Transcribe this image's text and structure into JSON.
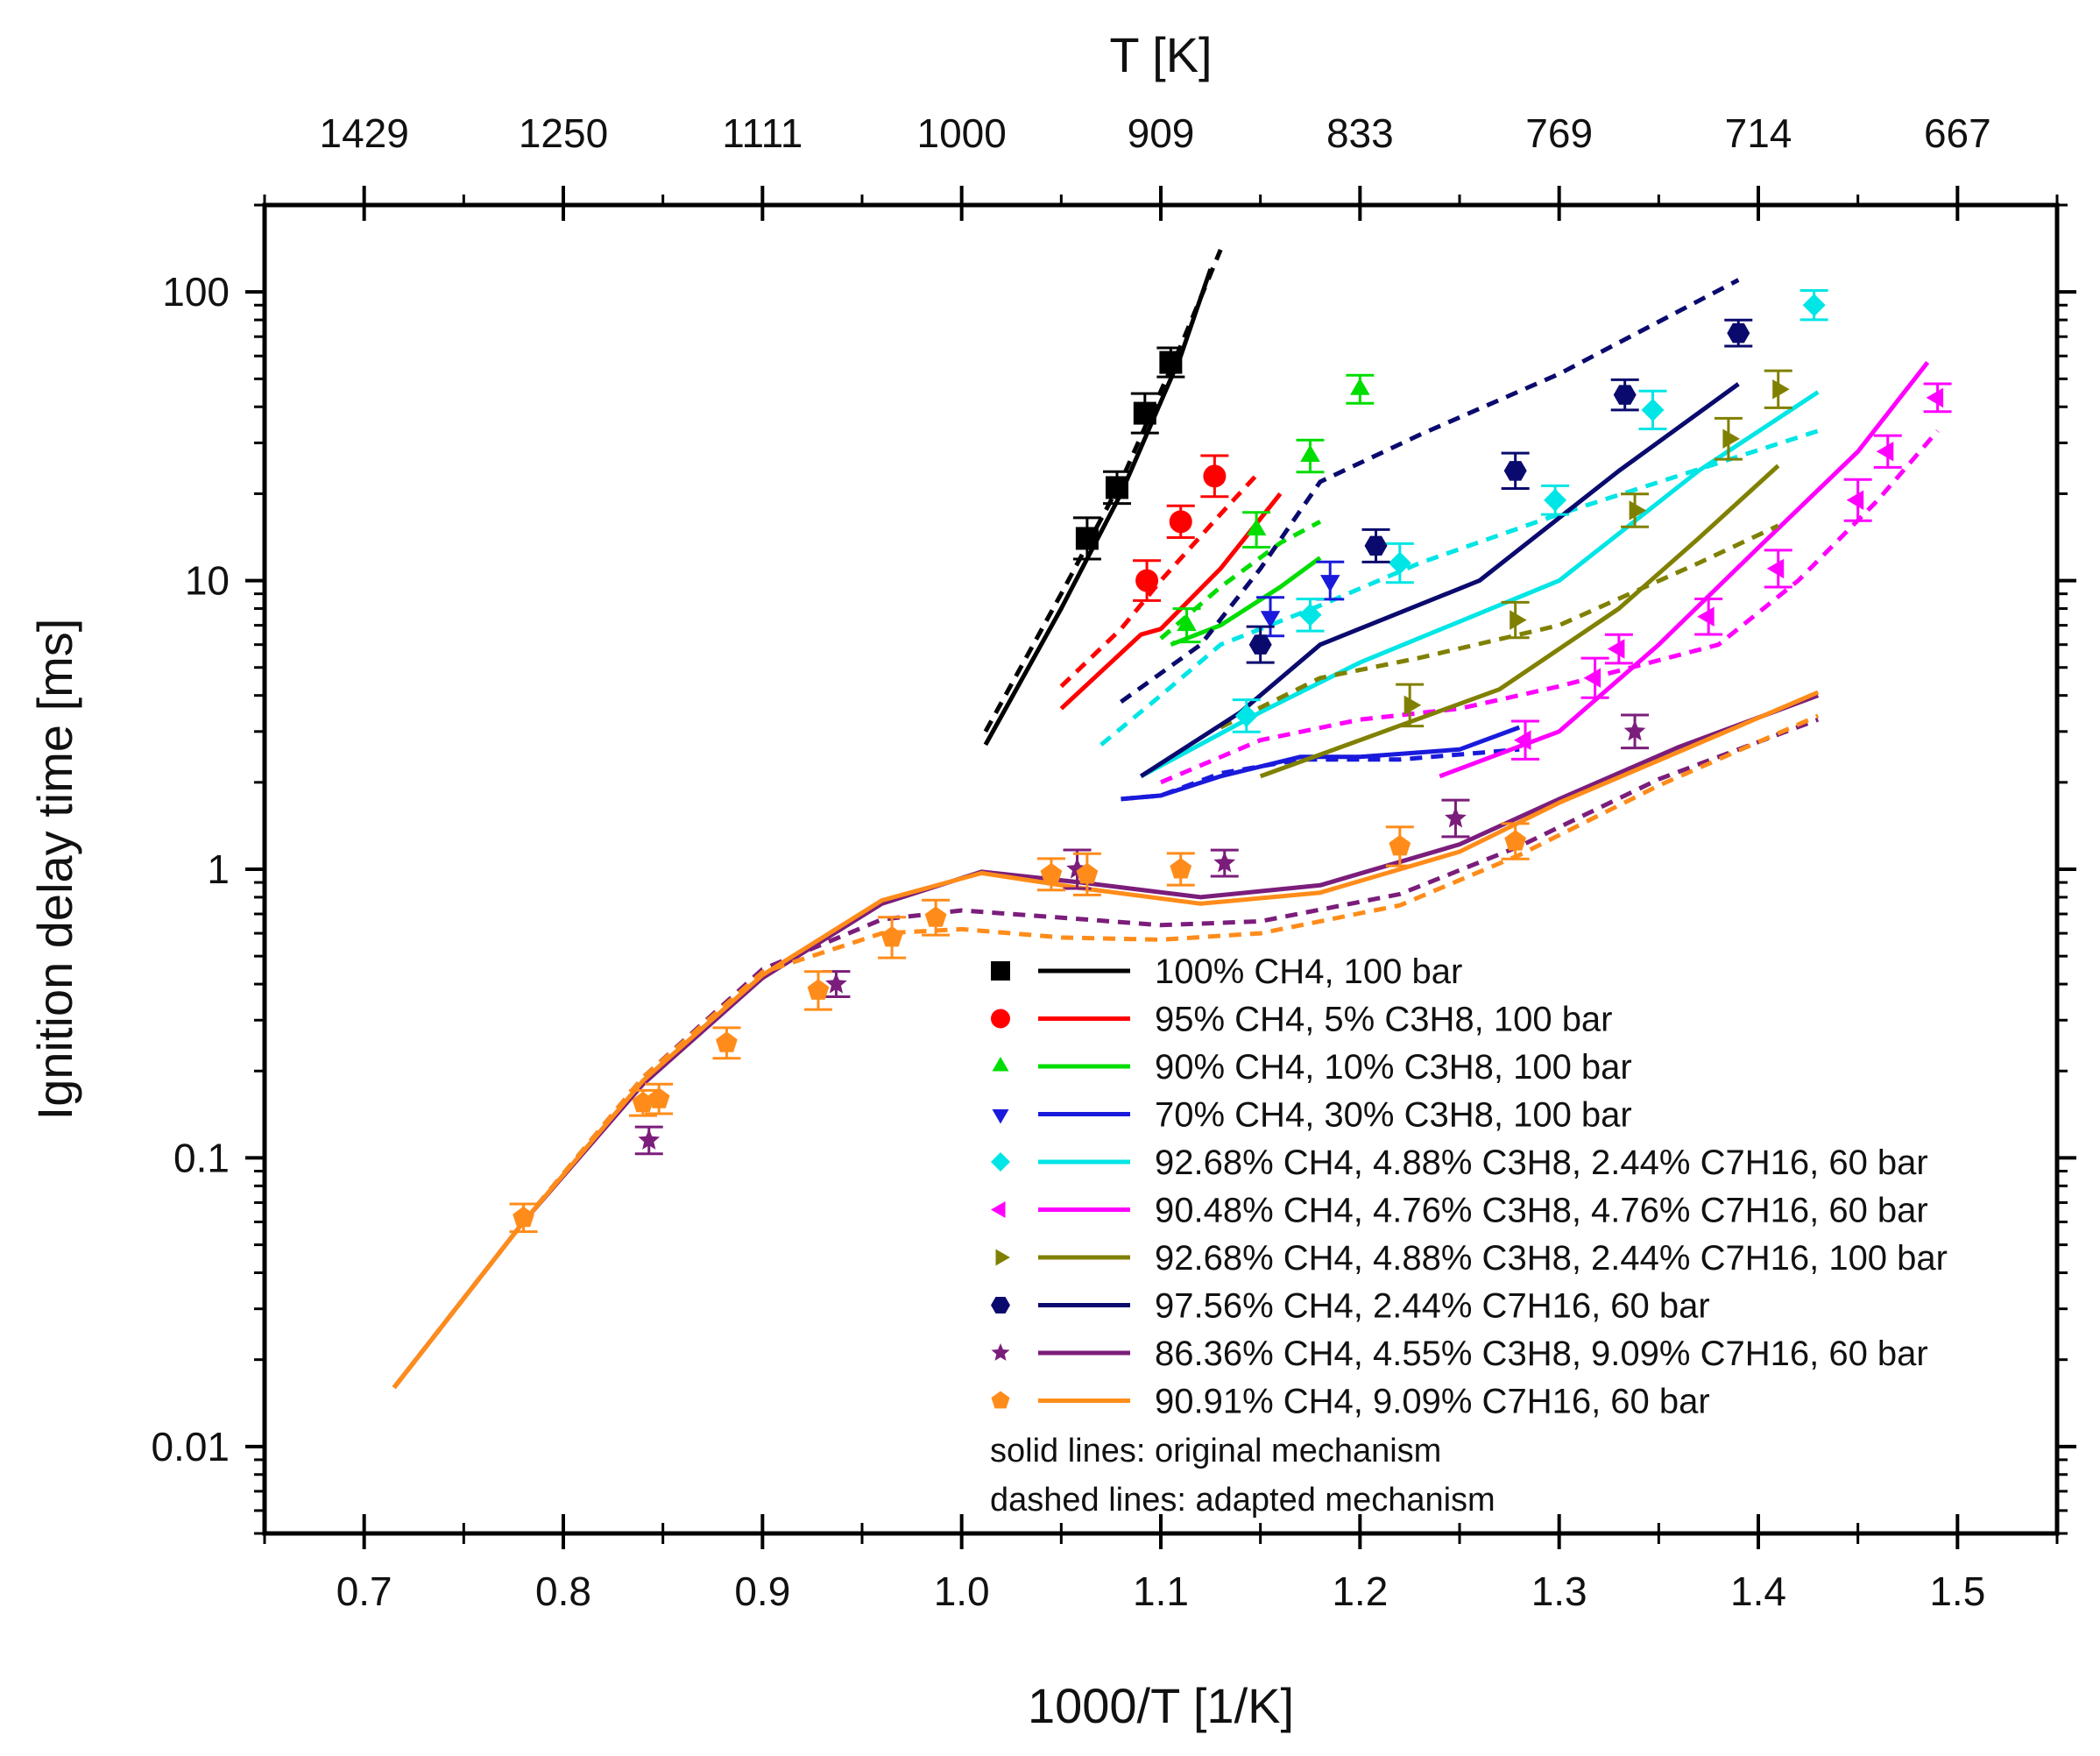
{
  "chart_data": {
    "type": "scatter",
    "xlabel": "1000/T [1/K]",
    "ylabel": "Ignition delay time [ms]",
    "top_xlabel": "T [K]",
    "xlim": [
      0.65,
      1.55
    ],
    "ylim_log": [
      0.005,
      200
    ],
    "xticks": [
      0.7,
      0.8,
      0.9,
      1.0,
      1.1,
      1.2,
      1.3,
      1.4,
      1.5
    ],
    "xtick_labels": [
      "0.7",
      "0.8",
      "0.9",
      "1.0",
      "1.1",
      "1.2",
      "1.3",
      "1.4",
      "1.5"
    ],
    "yticks": [
      0.01,
      0.1,
      1,
      10,
      100
    ],
    "ytick_labels": [
      "0.01",
      "0.1",
      "1",
      "10",
      "100"
    ],
    "top_ticks": [
      0.7,
      0.8,
      0.9,
      1.0,
      1.1,
      1.2,
      1.3,
      1.4,
      1.5
    ],
    "top_tick_labels": [
      "1429",
      "1250",
      "1111",
      "1000",
      "909",
      "833",
      "769",
      "714",
      "667"
    ],
    "notes": [
      "solid lines: original mechanism",
      "dashed lines: adapted mechanism"
    ],
    "series": [
      {
        "name": "100% CH4, 100 bar",
        "color": "#000000",
        "marker": "square",
        "points": [
          [
            1.063,
            14
          ],
          [
            1.078,
            21
          ],
          [
            1.092,
            38
          ],
          [
            1.105,
            57
          ]
        ],
        "solid": [
          [
            1.012,
            2.7
          ],
          [
            1.05,
            8
          ],
          [
            1.08,
            20
          ],
          [
            1.11,
            60
          ],
          [
            1.125,
            120
          ]
        ],
        "dashed": [
          [
            1.012,
            3.0
          ],
          [
            1.05,
            9
          ],
          [
            1.08,
            22
          ],
          [
            1.11,
            65
          ],
          [
            1.13,
            140
          ]
        ]
      },
      {
        "name": "95% CH4, 5% C3H8, 100 bar",
        "color": "#ff0000",
        "marker": "circle",
        "points": [
          [
            1.093,
            10
          ],
          [
            1.11,
            16
          ],
          [
            1.127,
            23
          ]
        ],
        "solid": [
          [
            1.05,
            3.6
          ],
          [
            1.09,
            6.5
          ],
          [
            1.1,
            6.8
          ],
          [
            1.13,
            11
          ],
          [
            1.16,
            20
          ]
        ],
        "dashed": [
          [
            1.05,
            4.3
          ],
          [
            1.08,
            6.8
          ],
          [
            1.1,
            10
          ],
          [
            1.13,
            17
          ],
          [
            1.15,
            24
          ]
        ]
      },
      {
        "name": "90% CH4, 10% C3H8, 100 bar",
        "color": "#00dd00",
        "marker": "triangle-up",
        "points": [
          [
            1.113,
            7
          ],
          [
            1.148,
            15
          ],
          [
            1.175,
            27
          ],
          [
            1.2,
            46
          ]
        ],
        "solid": [
          [
            1.105,
            6.0
          ],
          [
            1.13,
            7.0
          ],
          [
            1.16,
            9.5
          ],
          [
            1.18,
            12
          ]
        ],
        "dashed": [
          [
            1.1,
            6.3
          ],
          [
            1.13,
            9.5
          ],
          [
            1.16,
            13.5
          ],
          [
            1.18,
            16
          ]
        ]
      },
      {
        "name": "70% CH4, 30% C3H8, 100 bar",
        "color": "#1a1adc",
        "marker": "triangle-down",
        "points": [
          [
            1.155,
            7.5
          ],
          [
            1.185,
            10
          ]
        ],
        "solid": [
          [
            1.08,
            1.75
          ],
          [
            1.1,
            1.8
          ],
          [
            1.13,
            2.1
          ],
          [
            1.17,
            2.45
          ],
          [
            1.2,
            2.45
          ],
          [
            1.25,
            2.6
          ],
          [
            1.28,
            3.1
          ]
        ],
        "dashed": [
          [
            1.08,
            1.75
          ],
          [
            1.1,
            1.8
          ],
          [
            1.13,
            2.15
          ],
          [
            1.17,
            2.4
          ],
          [
            1.22,
            2.4
          ],
          [
            1.28,
            2.6
          ]
        ]
      },
      {
        "name": "92.68% CH4, 4.88% C3H8, 2.44% C7H16, 60 bar",
        "color": "#00e5e5",
        "marker": "diamond",
        "points": [
          [
            1.143,
            3.4
          ],
          [
            1.175,
            7.6
          ],
          [
            1.22,
            11.5
          ],
          [
            1.298,
            19
          ],
          [
            1.347,
            39
          ],
          [
            1.428,
            90
          ]
        ],
        "solid": [
          [
            1.09,
            2.1
          ],
          [
            1.15,
            3.5
          ],
          [
            1.2,
            5.2
          ],
          [
            1.3,
            10
          ],
          [
            1.37,
            24
          ],
          [
            1.43,
            45
          ]
        ],
        "dashed": [
          [
            1.07,
            2.7
          ],
          [
            1.1,
            4.0
          ],
          [
            1.13,
            6.0
          ],
          [
            1.18,
            8.2
          ],
          [
            1.23,
            11.5
          ],
          [
            1.3,
            17
          ],
          [
            1.43,
            33
          ]
        ]
      },
      {
        "name": "90.48% CH4, 4.76% C3H8, 4.76% C7H16, 60 bar",
        "color": "#ff00ff",
        "marker": "triangle-left",
        "points": [
          [
            1.283,
            2.8
          ],
          [
            1.318,
            4.6
          ],
          [
            1.33,
            5.8
          ],
          [
            1.375,
            7.5
          ],
          [
            1.41,
            11
          ],
          [
            1.45,
            19
          ],
          [
            1.465,
            28
          ],
          [
            1.49,
            43
          ]
        ],
        "solid": [
          [
            1.24,
            2.1
          ],
          [
            1.3,
            3.0
          ],
          [
            1.35,
            6.0
          ],
          [
            1.4,
            13
          ],
          [
            1.45,
            28
          ],
          [
            1.485,
            57
          ]
        ],
        "dashed": [
          [
            1.1,
            2.0
          ],
          [
            1.15,
            2.8
          ],
          [
            1.2,
            3.3
          ],
          [
            1.25,
            3.6
          ],
          [
            1.3,
            4.3
          ],
          [
            1.38,
            6.0
          ],
          [
            1.42,
            10
          ],
          [
            1.46,
            19
          ],
          [
            1.49,
            33
          ]
        ]
      },
      {
        "name": "92.68% CH4, 4.88% C3H8, 2.44% C7H16, 100 bar",
        "color": "#808000",
        "marker": "triangle-right",
        "points": [
          [
            1.225,
            3.7
          ],
          [
            1.278,
            7.3
          ],
          [
            1.338,
            17.5
          ],
          [
            1.385,
            31
          ],
          [
            1.41,
            46
          ]
        ],
        "solid": [
          [
            1.15,
            2.1
          ],
          [
            1.2,
            2.8
          ],
          [
            1.27,
            4.2
          ],
          [
            1.33,
            8.0
          ],
          [
            1.37,
            14
          ],
          [
            1.41,
            25
          ]
        ],
        "dashed": [
          [
            1.13,
            3.1
          ],
          [
            1.18,
            4.6
          ],
          [
            1.23,
            5.4
          ],
          [
            1.3,
            7.0
          ],
          [
            1.37,
            11.5
          ],
          [
            1.41,
            15.5
          ]
        ]
      },
      {
        "name": "97.56% CH4, 2.44% C7H16, 60 bar",
        "color": "#0a0a6e",
        "marker": "hexagon",
        "points": [
          [
            1.15,
            6
          ],
          [
            1.208,
            13.2
          ],
          [
            1.278,
            24
          ],
          [
            1.333,
            44
          ],
          [
            1.39,
            72
          ]
        ],
        "solid": [
          [
            1.09,
            2.1
          ],
          [
            1.14,
            3.5
          ],
          [
            1.18,
            6.0
          ],
          [
            1.26,
            10
          ],
          [
            1.33,
            24
          ],
          [
            1.39,
            48
          ]
        ],
        "dashed": [
          [
            1.08,
            3.8
          ],
          [
            1.12,
            6.0
          ],
          [
            1.15,
            11
          ],
          [
            1.18,
            22
          ],
          [
            1.23,
            32
          ],
          [
            1.3,
            52
          ],
          [
            1.39,
            110
          ]
        ]
      },
      {
        "name": "86.36% CH4, 4.55% C3H8, 9.09% C7H16, 60 bar",
        "color": "#7b1d7b",
        "marker": "star",
        "points": [
          [
            0.843,
            0.115
          ],
          [
            0.937,
            0.4
          ],
          [
            1.058,
            1.0
          ],
          [
            1.132,
            1.05
          ],
          [
            1.248,
            1.5
          ],
          [
            1.338,
            3.0
          ]
        ],
        "solid": [
          [
            0.715,
            0.016
          ],
          [
            0.78,
            0.06
          ],
          [
            0.84,
            0.18
          ],
          [
            0.9,
            0.42
          ],
          [
            0.96,
            0.76
          ],
          [
            1.01,
            0.98
          ],
          [
            1.06,
            0.9
          ],
          [
            1.12,
            0.8
          ],
          [
            1.18,
            0.88
          ],
          [
            1.25,
            1.22
          ],
          [
            1.3,
            1.75
          ],
          [
            1.36,
            2.65
          ],
          [
            1.43,
            4.0
          ]
        ],
        "dashed": [
          [
            0.715,
            0.016
          ],
          [
            0.78,
            0.06
          ],
          [
            0.84,
            0.19
          ],
          [
            0.9,
            0.45
          ],
          [
            0.96,
            0.67
          ],
          [
            1.0,
            0.72
          ],
          [
            1.05,
            0.68
          ],
          [
            1.1,
            0.64
          ],
          [
            1.15,
            0.66
          ],
          [
            1.22,
            0.82
          ],
          [
            1.28,
            1.2
          ],
          [
            1.35,
            2.05
          ],
          [
            1.43,
            3.3
          ]
        ]
      },
      {
        "name": "90.91% CH4, 9.09% C7H16, 60 bar",
        "color": "#ff8c1a",
        "marker": "pentagon",
        "points": [
          [
            0.78,
            0.062
          ],
          [
            0.84,
            0.155
          ],
          [
            0.848,
            0.16
          ],
          [
            0.882,
            0.25
          ],
          [
            0.928,
            0.38
          ],
          [
            0.965,
            0.58
          ],
          [
            0.987,
            0.68
          ],
          [
            1.045,
            0.96
          ],
          [
            1.063,
            0.96
          ],
          [
            1.11,
            1.0
          ],
          [
            1.22,
            1.2
          ],
          [
            1.278,
            1.25
          ]
        ],
        "solid": [
          [
            0.715,
            0.016
          ],
          [
            0.78,
            0.06
          ],
          [
            0.84,
            0.185
          ],
          [
            0.9,
            0.43
          ],
          [
            0.96,
            0.78
          ],
          [
            1.01,
            0.97
          ],
          [
            1.06,
            0.86
          ],
          [
            1.12,
            0.76
          ],
          [
            1.18,
            0.83
          ],
          [
            1.25,
            1.15
          ],
          [
            1.3,
            1.7
          ],
          [
            1.36,
            2.55
          ],
          [
            1.43,
            4.1
          ]
        ],
        "dashed": [
          [
            0.715,
            0.016
          ],
          [
            0.78,
            0.06
          ],
          [
            0.84,
            0.19
          ],
          [
            0.9,
            0.44
          ],
          [
            0.96,
            0.6
          ],
          [
            1.0,
            0.62
          ],
          [
            1.05,
            0.58
          ],
          [
            1.1,
            0.57
          ],
          [
            1.15,
            0.6
          ],
          [
            1.22,
            0.75
          ],
          [
            1.28,
            1.12
          ],
          [
            1.35,
            1.95
          ],
          [
            1.43,
            3.4
          ]
        ]
      }
    ]
  }
}
